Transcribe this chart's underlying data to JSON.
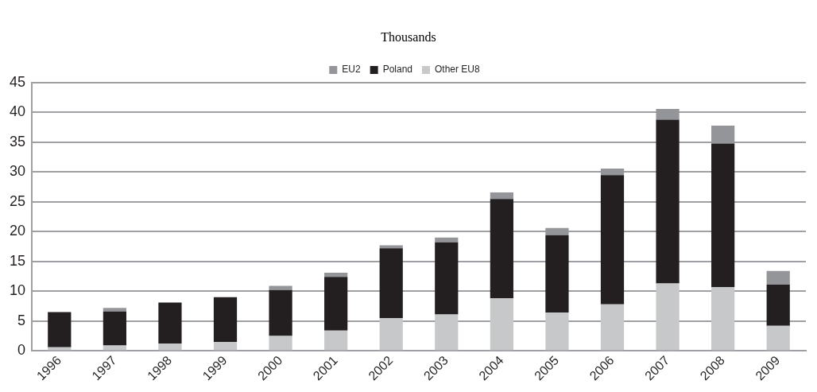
{
  "chart_data": {
    "type": "bar",
    "title": "Thousands",
    "stacked": true,
    "categories": [
      "1996",
      "1997",
      "1998",
      "1999",
      "2000",
      "2001",
      "2002",
      "2003",
      "2004",
      "2005",
      "2006",
      "2007",
      "2008",
      "2009"
    ],
    "series": [
      {
        "name": "Other EU8",
        "color": "#c7c8ca",
        "values": [
          0.6,
          0.9,
          1.2,
          1.5,
          2.5,
          3.4,
          5.5,
          6.1,
          8.8,
          6.4,
          7.8,
          11.3,
          10.7,
          4.2
        ]
      },
      {
        "name": "Poland",
        "color": "#231f20",
        "values": [
          5.9,
          5.7,
          6.9,
          7.5,
          7.7,
          9.0,
          11.7,
          12.1,
          16.7,
          13.0,
          21.7,
          27.5,
          24.1,
          6.9
        ]
      },
      {
        "name": "EU2",
        "color": "#939598",
        "values": [
          0,
          0.6,
          0,
          0,
          0.7,
          0.7,
          0.5,
          0.8,
          1.1,
          1.2,
          1.1,
          1.8,
          3.0,
          2.3
        ]
      }
    ],
    "ylim": [
      0,
      45
    ],
    "yticks": [
      0,
      5,
      10,
      15,
      20,
      25,
      30,
      35,
      40,
      45
    ],
    "grid": "y",
    "legend": "top"
  }
}
